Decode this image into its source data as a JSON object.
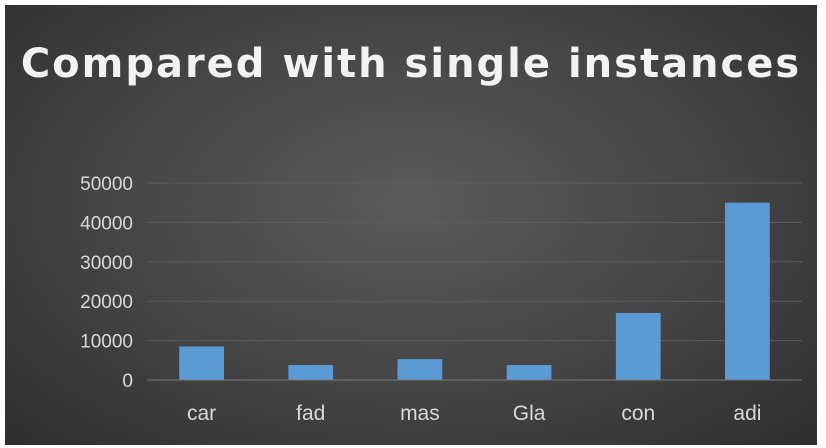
{
  "chart_data": {
    "type": "bar",
    "title": "Compared with single instances",
    "categories": [
      "car",
      "fad",
      "mas",
      "Gla",
      "con",
      "adi"
    ],
    "values": [
      8500,
      3800,
      5300,
      3800,
      17000,
      45000
    ],
    "xlabel": "",
    "ylabel": "",
    "ylim": [
      0,
      50000
    ],
    "yticks": [
      "0",
      "10000",
      "20000",
      "30000",
      "40000",
      "50000"
    ],
    "grid": true,
    "legend": "none",
    "bar_color": "#5b9bd5",
    "background_color": "#444444",
    "grid_color": "#5e5e5e"
  }
}
